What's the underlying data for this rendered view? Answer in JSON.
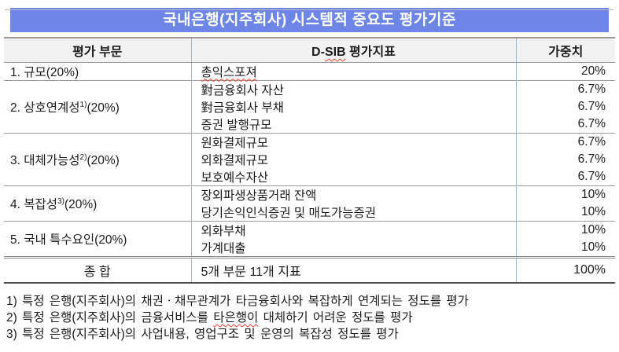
{
  "page": {
    "title": "국내은행(지주회사) 시스템적 중요도 평가기준"
  },
  "table": {
    "headers": {
      "col1": "평가 부문",
      "col2_pre": "D-",
      "col2_squiggle": "SIB",
      "col2_post": " 평가지표",
      "col3": "가중치"
    },
    "sections": [
      {
        "category_pre": "1. 규모",
        "category_sup": "",
        "category_post": "(20%)",
        "rows": [
          {
            "indicator": "총익스포져",
            "weight": "20%"
          }
        ]
      },
      {
        "category_pre": "2. 상호연계성",
        "category_sup": "1)",
        "category_post": "(20%)",
        "rows": [
          {
            "indicator": "對금융회사 자산",
            "weight": "6.7%"
          },
          {
            "indicator": "對금융회사 부채",
            "weight": "6.7%"
          },
          {
            "indicator": "증권 발행규모",
            "weight": "6.7%"
          }
        ]
      },
      {
        "category_pre": "3. 대체가능성",
        "category_sup": "2)",
        "category_post": "(20%)",
        "rows": [
          {
            "indicator": "원화결제규모",
            "weight": "6.7%"
          },
          {
            "indicator": "외화결제규모",
            "weight": "6.7%"
          },
          {
            "indicator": "보호예수자산",
            "weight": "6.7%"
          }
        ]
      },
      {
        "category_pre": "4. 복잡성",
        "category_sup": "3)",
        "category_post": "(20%)",
        "rows": [
          {
            "indicator": "장외파생상품거래 잔액",
            "weight": "10%"
          },
          {
            "indicator": "당기손익인식증권 및 매도가능증권",
            "weight": "10%"
          }
        ]
      },
      {
        "category_pre": "5. 국내 특수요인",
        "category_sup": "",
        "category_post": "(20%)",
        "rows": [
          {
            "indicator": "외화부채",
            "weight": "10%"
          },
          {
            "indicator": "가계대출",
            "weight": "10%"
          }
        ]
      }
    ],
    "footer": {
      "category": "종 합",
      "indicator": "5개 부문 11개 지표",
      "weight": "100%"
    }
  },
  "footnotes": [
    {
      "full": "1) 특정 은행(지주회사)의 채권ㆍ채무관계가 타금융회사와 복잡하게 연계되는 정도를 평가"
    },
    {
      "pre": "2) 특정 은행(지주회사)의 금융서비스를 ",
      "squiggle": "타은행이",
      "post": " 대체하기 어려운 정도를 평가"
    },
    {
      "full": "3) 특정 은행(지주회사)의 사업내용, 영업구조 및 운영의 복잡성 정도를 평가"
    }
  ],
  "colors": {
    "title_bg": "#6d86e6",
    "header_bg": "#f2f2f2",
    "h_border": "#9a9a9a",
    "bottom_border": "#4f4f4f",
    "v_border": "#a4b9cf",
    "squiggle": "#e8442c"
  }
}
